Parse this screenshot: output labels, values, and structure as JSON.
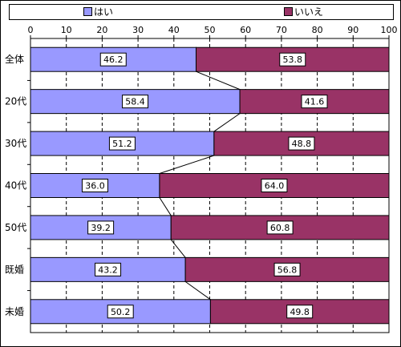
{
  "legend": {
    "items": [
      {
        "label": "はい",
        "color": "#9999ff"
      },
      {
        "label": "いいえ",
        "color": "#993366"
      }
    ]
  },
  "chart_data": {
    "type": "bar",
    "orientation": "horizontal-stacked-100",
    "categories": [
      "全体",
      "20代",
      "30代",
      "40代",
      "50代",
      "既婚",
      "未婚"
    ],
    "series": [
      {
        "name": "はい",
        "color": "#9999ff",
        "values": [
          46.2,
          58.4,
          51.2,
          36.0,
          39.2,
          43.2,
          50.2
        ],
        "labels": [
          "46.2",
          "58.4",
          "51.2",
          "36.0",
          "39.2",
          "43.2",
          "50.2"
        ]
      },
      {
        "name": "いいえ",
        "color": "#993366",
        "values": [
          53.8,
          41.6,
          48.8,
          64.0,
          60.8,
          56.8,
          49.8
        ],
        "labels": [
          "53.8",
          "41.6",
          "48.8",
          "64.0",
          "60.8",
          "56.8",
          "49.8"
        ]
      }
    ],
    "xlim": [
      0,
      100
    ],
    "xticks": [
      "0",
      "10",
      "20",
      "30",
      "40",
      "50",
      "60",
      "70",
      "80",
      "90",
      "100"
    ],
    "grid": "vertical dashed",
    "legend_position": "top",
    "series_lines": true
  }
}
